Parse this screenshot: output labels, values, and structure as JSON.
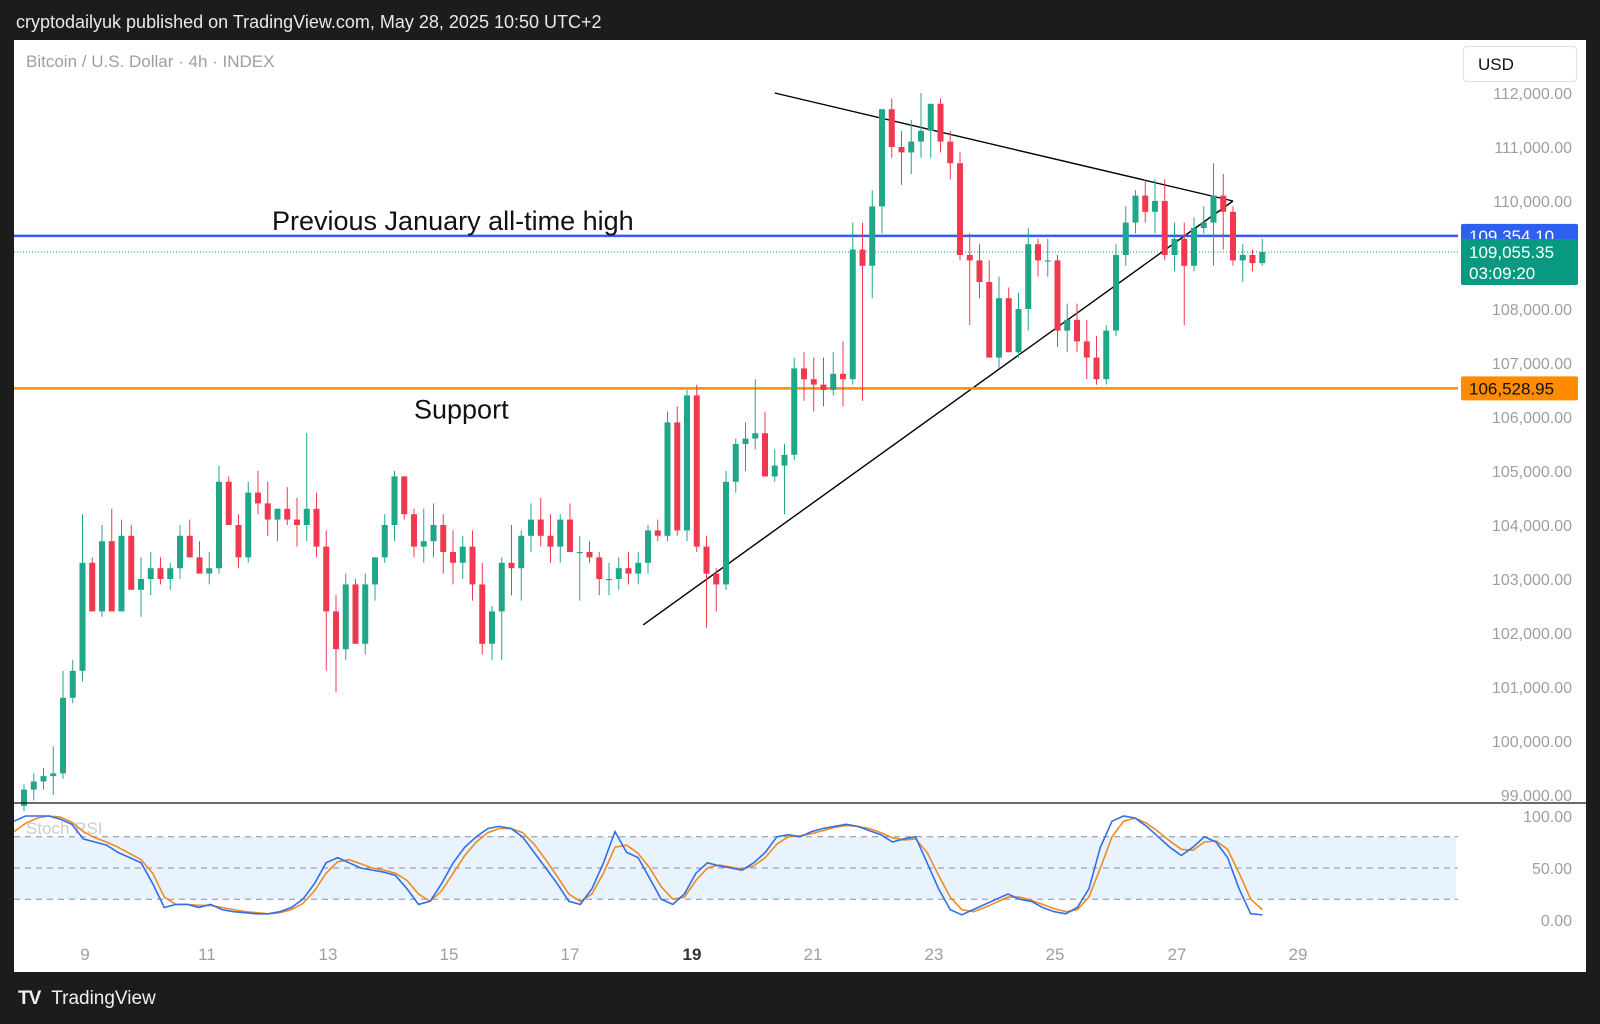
{
  "header": {
    "text": "cryptodailyuk published on TradingView.com, May 28, 2025 10:50 UTC+2"
  },
  "symbol": {
    "label": "Bitcoin / U.S. Dollar · 4h · INDEX"
  },
  "currency": {
    "label": "USD"
  },
  "footer": {
    "logo_icon": "tradingview-logo-icon",
    "brand": "TradingView"
  },
  "colors": {
    "up": "#22a68a",
    "down": "#f0394f",
    "resistance": "#2f5ff0",
    "support": "#ff8c00",
    "stoch_k": "#2f6fe8",
    "stoch_d": "#f08a24"
  },
  "chart_data": {
    "type": "candlestick",
    "interval": "4h",
    "price_scale": {
      "ticks": [
        "112,000.00",
        "111,000.00",
        "110,000.00",
        "108,000.00",
        "107,000.00",
        "106,000.00",
        "105,000.00",
        "104,000.00",
        "103,000.00",
        "102,000.00",
        "101,000.00",
        "100,000.00",
        "99,000.00"
      ],
      "range": [
        98750,
        112700
      ]
    },
    "x_axis": {
      "labels": [
        "9",
        "11",
        "13",
        "15",
        "17",
        "19",
        "21",
        "23",
        "25",
        "27",
        "29"
      ],
      "bold_label": "19"
    },
    "price_labels": [
      {
        "text": "109,354.10",
        "price": 109354.1,
        "color": "#2f5ff0"
      },
      {
        "text": "109,055.35",
        "price": 109055.35,
        "color": "#089981",
        "sub": "03:09:20"
      },
      {
        "text": "106,528.95",
        "price": 106528.95,
        "color": "#ff8c00"
      }
    ],
    "horizontal_lines": [
      {
        "name": "resistance",
        "price": 109354.1,
        "label": "Previous January all-time high"
      },
      {
        "name": "support",
        "price": 106528.95,
        "label": "Support"
      }
    ],
    "current_price": 109055.35,
    "triangle": {
      "apex_price": 110000,
      "apex_index": 124,
      "upper_start": [
        77,
        112000
      ],
      "lower_start": [
        63.5,
        102150
      ]
    },
    "candles": [
      {
        "i": 0,
        "o": 98800,
        "h": 99200,
        "l": 98700,
        "c": 99100
      },
      {
        "i": 1,
        "o": 99100,
        "h": 99400,
        "l": 98900,
        "c": 99250
      },
      {
        "i": 2,
        "o": 99250,
        "h": 99500,
        "l": 99100,
        "c": 99350
      },
      {
        "i": 3,
        "o": 99350,
        "h": 99900,
        "l": 99000,
        "c": 99400
      },
      {
        "i": 4,
        "o": 99400,
        "h": 101300,
        "l": 99300,
        "c": 100800
      },
      {
        "i": 5,
        "o": 100800,
        "h": 101500,
        "l": 100700,
        "c": 101300
      },
      {
        "i": 6,
        "o": 101300,
        "h": 104200,
        "l": 101100,
        "c": 103300
      },
      {
        "i": 7,
        "o": 103300,
        "h": 103400,
        "l": 102400,
        "c": 102400
      },
      {
        "i": 8,
        "o": 102400,
        "h": 104000,
        "l": 102300,
        "c": 103700
      },
      {
        "i": 9,
        "o": 103700,
        "h": 104300,
        "l": 102400,
        "c": 102400
      },
      {
        "i": 10,
        "o": 102400,
        "h": 104100,
        "l": 102400,
        "c": 103800
      },
      {
        "i": 11,
        "o": 103800,
        "h": 104000,
        "l": 102800,
        "c": 102800
      },
      {
        "i": 12,
        "o": 102800,
        "h": 103400,
        "l": 102300,
        "c": 103000
      },
      {
        "i": 13,
        "o": 103000,
        "h": 103500,
        "l": 102700,
        "c": 103200
      },
      {
        "i": 14,
        "o": 103200,
        "h": 103400,
        "l": 102900,
        "c": 103000
      },
      {
        "i": 15,
        "o": 103000,
        "h": 103300,
        "l": 102800,
        "c": 103200
      },
      {
        "i": 16,
        "o": 103200,
        "h": 104000,
        "l": 103000,
        "c": 103800
      },
      {
        "i": 17,
        "o": 103800,
        "h": 104100,
        "l": 103500,
        "c": 103400
      },
      {
        "i": 18,
        "o": 103400,
        "h": 103700,
        "l": 103100,
        "c": 103100
      },
      {
        "i": 19,
        "o": 103100,
        "h": 103500,
        "l": 102900,
        "c": 103200
      },
      {
        "i": 20,
        "o": 103200,
        "h": 105100,
        "l": 103100,
        "c": 104800
      },
      {
        "i": 21,
        "o": 104800,
        "h": 104900,
        "l": 104000,
        "c": 104000
      },
      {
        "i": 22,
        "o": 104000,
        "h": 104200,
        "l": 103200,
        "c": 103400
      },
      {
        "i": 23,
        "o": 103400,
        "h": 104800,
        "l": 103300,
        "c": 104600
      },
      {
        "i": 24,
        "o": 104600,
        "h": 105000,
        "l": 104200,
        "c": 104400
      },
      {
        "i": 25,
        "o": 104400,
        "h": 104800,
        "l": 103800,
        "c": 104100
      },
      {
        "i": 26,
        "o": 104100,
        "h": 104300,
        "l": 103700,
        "c": 104300
      },
      {
        "i": 27,
        "o": 104300,
        "h": 104700,
        "l": 104000,
        "c": 104100
      },
      {
        "i": 28,
        "o": 104100,
        "h": 104500,
        "l": 103600,
        "c": 104000
      },
      {
        "i": 29,
        "o": 104000,
        "h": 105700,
        "l": 103700,
        "c": 104300
      },
      {
        "i": 30,
        "o": 104300,
        "h": 104600,
        "l": 103400,
        "c": 103600
      },
      {
        "i": 31,
        "o": 103600,
        "h": 103900,
        "l": 101300,
        "c": 102400
      },
      {
        "i": 32,
        "o": 102400,
        "h": 102700,
        "l": 100900,
        "c": 101700
      },
      {
        "i": 33,
        "o": 101700,
        "h": 103100,
        "l": 101500,
        "c": 102900
      },
      {
        "i": 34,
        "o": 102900,
        "h": 103000,
        "l": 101800,
        "c": 101800
      },
      {
        "i": 35,
        "o": 101800,
        "h": 103100,
        "l": 101600,
        "c": 102900
      },
      {
        "i": 36,
        "o": 102900,
        "h": 103400,
        "l": 102600,
        "c": 103400
      },
      {
        "i": 37,
        "o": 103400,
        "h": 104200,
        "l": 103300,
        "c": 104000
      },
      {
        "i": 38,
        "o": 104000,
        "h": 105000,
        "l": 103700,
        "c": 104900
      },
      {
        "i": 39,
        "o": 104900,
        "h": 104900,
        "l": 104100,
        "c": 104200
      },
      {
        "i": 40,
        "o": 104200,
        "h": 104300,
        "l": 103400,
        "c": 103600
      },
      {
        "i": 41,
        "o": 103600,
        "h": 104300,
        "l": 103300,
        "c": 103700
      },
      {
        "i": 42,
        "o": 103700,
        "h": 104400,
        "l": 103400,
        "c": 104000
      },
      {
        "i": 43,
        "o": 104000,
        "h": 104200,
        "l": 103100,
        "c": 103500
      },
      {
        "i": 44,
        "o": 103500,
        "h": 103900,
        "l": 102900,
        "c": 103300
      },
      {
        "i": 45,
        "o": 103300,
        "h": 103800,
        "l": 103000,
        "c": 103600
      },
      {
        "i": 46,
        "o": 103600,
        "h": 103900,
        "l": 102600,
        "c": 102900
      },
      {
        "i": 47,
        "o": 102900,
        "h": 103300,
        "l": 101600,
        "c": 101800
      },
      {
        "i": 48,
        "o": 101800,
        "h": 102500,
        "l": 101500,
        "c": 102400
      },
      {
        "i": 49,
        "o": 102400,
        "h": 103400,
        "l": 101500,
        "c": 103300
      },
      {
        "i": 50,
        "o": 103300,
        "h": 104000,
        "l": 102700,
        "c": 103200
      },
      {
        "i": 51,
        "o": 103200,
        "h": 103900,
        "l": 102600,
        "c": 103800
      },
      {
        "i": 52,
        "o": 103800,
        "h": 104400,
        "l": 103500,
        "c": 104100
      },
      {
        "i": 53,
        "o": 104100,
        "h": 104500,
        "l": 103600,
        "c": 103800
      },
      {
        "i": 54,
        "o": 103800,
        "h": 104200,
        "l": 103300,
        "c": 103600
      },
      {
        "i": 55,
        "o": 103600,
        "h": 104200,
        "l": 103300,
        "c": 104100
      },
      {
        "i": 56,
        "o": 104100,
        "h": 104400,
        "l": 103500,
        "c": 103500
      },
      {
        "i": 57,
        "o": 103500,
        "h": 103800,
        "l": 102600,
        "c": 103500
      },
      {
        "i": 58,
        "o": 103500,
        "h": 103700,
        "l": 103300,
        "c": 103400
      },
      {
        "i": 59,
        "o": 103400,
        "h": 103500,
        "l": 102700,
        "c": 103000
      },
      {
        "i": 60,
        "o": 103000,
        "h": 103300,
        "l": 102700,
        "c": 103000
      },
      {
        "i": 61,
        "o": 103000,
        "h": 103400,
        "l": 102800,
        "c": 103200
      },
      {
        "i": 62,
        "o": 103200,
        "h": 103500,
        "l": 102900,
        "c": 103100
      },
      {
        "i": 63,
        "o": 103100,
        "h": 103500,
        "l": 102900,
        "c": 103300
      },
      {
        "i": 64,
        "o": 103300,
        "h": 104000,
        "l": 103100,
        "c": 103900
      },
      {
        "i": 65,
        "o": 103900,
        "h": 104100,
        "l": 103700,
        "c": 103800
      },
      {
        "i": 66,
        "o": 103800,
        "h": 106100,
        "l": 103700,
        "c": 105900
      },
      {
        "i": 67,
        "o": 105900,
        "h": 106200,
        "l": 103800,
        "c": 103900
      },
      {
        "i": 68,
        "o": 103900,
        "h": 106500,
        "l": 103700,
        "c": 106400
      },
      {
        "i": 69,
        "o": 106400,
        "h": 106600,
        "l": 103500,
        "c": 103600
      },
      {
        "i": 70,
        "o": 103600,
        "h": 103800,
        "l": 102100,
        "c": 103100
      },
      {
        "i": 71,
        "o": 103100,
        "h": 103200,
        "l": 102400,
        "c": 102900
      },
      {
        "i": 72,
        "o": 102900,
        "h": 105000,
        "l": 102800,
        "c": 104800
      },
      {
        "i": 73,
        "o": 104800,
        "h": 105600,
        "l": 104600,
        "c": 105500
      },
      {
        "i": 74,
        "o": 105500,
        "h": 105900,
        "l": 105000,
        "c": 105600
      },
      {
        "i": 75,
        "o": 105600,
        "h": 106700,
        "l": 105400,
        "c": 105700
      },
      {
        "i": 76,
        "o": 105700,
        "h": 106100,
        "l": 104900,
        "c": 104900
      },
      {
        "i": 77,
        "o": 104900,
        "h": 105400,
        "l": 104800,
        "c": 105100
      },
      {
        "i": 78,
        "o": 105100,
        "h": 105500,
        "l": 104200,
        "c": 105300
      },
      {
        "i": 79,
        "o": 105300,
        "h": 107100,
        "l": 105200,
        "c": 106900
      },
      {
        "i": 80,
        "o": 106900,
        "h": 107200,
        "l": 106300,
        "c": 106700
      },
      {
        "i": 81,
        "o": 106700,
        "h": 107100,
        "l": 106100,
        "c": 106600
      },
      {
        "i": 82,
        "o": 106600,
        "h": 107100,
        "l": 106200,
        "c": 106500
      },
      {
        "i": 83,
        "o": 106500,
        "h": 107200,
        "l": 106400,
        "c": 106800
      },
      {
        "i": 84,
        "o": 106800,
        "h": 107400,
        "l": 106200,
        "c": 106700
      },
      {
        "i": 85,
        "o": 106700,
        "h": 109600,
        "l": 106600,
        "c": 109100
      },
      {
        "i": 86,
        "o": 109100,
        "h": 109600,
        "l": 106300,
        "c": 108800
      },
      {
        "i": 87,
        "o": 108800,
        "h": 110200,
        "l": 108200,
        "c": 109900
      },
      {
        "i": 88,
        "o": 109900,
        "h": 111700,
        "l": 109400,
        "c": 111700
      },
      {
        "i": 89,
        "o": 111700,
        "h": 111900,
        "l": 110800,
        "c": 111000
      },
      {
        "i": 90,
        "o": 111000,
        "h": 111300,
        "l": 110300,
        "c": 110900
      },
      {
        "i": 91,
        "o": 110900,
        "h": 111500,
        "l": 110500,
        "c": 111100
      },
      {
        "i": 92,
        "o": 111100,
        "h": 112000,
        "l": 110800,
        "c": 111300
      },
      {
        "i": 93,
        "o": 111300,
        "h": 111800,
        "l": 110800,
        "c": 111800
      },
      {
        "i": 94,
        "o": 111800,
        "h": 111900,
        "l": 110900,
        "c": 111100
      },
      {
        "i": 95,
        "o": 111100,
        "h": 111300,
        "l": 110400,
        "c": 110700
      },
      {
        "i": 96,
        "o": 110700,
        "h": 110900,
        "l": 108900,
        "c": 109000
      },
      {
        "i": 97,
        "o": 109000,
        "h": 109400,
        "l": 107700,
        "c": 108900
      },
      {
        "i": 98,
        "o": 108900,
        "h": 109200,
        "l": 108200,
        "c": 108500
      },
      {
        "i": 99,
        "o": 108500,
        "h": 108900,
        "l": 107100,
        "c": 107100
      },
      {
        "i": 100,
        "o": 107100,
        "h": 108600,
        "l": 106900,
        "c": 108200
      },
      {
        "i": 101,
        "o": 108200,
        "h": 108400,
        "l": 107200,
        "c": 107200
      },
      {
        "i": 102,
        "o": 107200,
        "h": 108300,
        "l": 107100,
        "c": 108000
      },
      {
        "i": 103,
        "o": 108000,
        "h": 109500,
        "l": 107600,
        "c": 109200
      },
      {
        "i": 104,
        "o": 109200,
        "h": 109300,
        "l": 108600,
        "c": 108900
      },
      {
        "i": 105,
        "o": 108900,
        "h": 109300,
        "l": 108600,
        "c": 108900
      },
      {
        "i": 106,
        "o": 108900,
        "h": 109000,
        "l": 107300,
        "c": 107600
      },
      {
        "i": 107,
        "o": 107600,
        "h": 108100,
        "l": 107200,
        "c": 107800
      },
      {
        "i": 108,
        "o": 107800,
        "h": 108100,
        "l": 107200,
        "c": 107400
      },
      {
        "i": 109,
        "o": 107400,
        "h": 107800,
        "l": 106700,
        "c": 107100
      },
      {
        "i": 110,
        "o": 107100,
        "h": 107500,
        "l": 106600,
        "c": 106700
      },
      {
        "i": 111,
        "o": 106700,
        "h": 107700,
        "l": 106600,
        "c": 107600
      },
      {
        "i": 112,
        "o": 107600,
        "h": 109200,
        "l": 107500,
        "c": 109000
      },
      {
        "i": 113,
        "o": 109000,
        "h": 109900,
        "l": 108800,
        "c": 109600
      },
      {
        "i": 114,
        "o": 109600,
        "h": 110200,
        "l": 109400,
        "c": 110100
      },
      {
        "i": 115,
        "o": 110100,
        "h": 110400,
        "l": 109600,
        "c": 109800
      },
      {
        "i": 116,
        "o": 109800,
        "h": 110400,
        "l": 109400,
        "c": 110000
      },
      {
        "i": 117,
        "o": 110000,
        "h": 110400,
        "l": 108900,
        "c": 109000
      },
      {
        "i": 118,
        "o": 109000,
        "h": 109600,
        "l": 108700,
        "c": 109300
      },
      {
        "i": 119,
        "o": 109300,
        "h": 109600,
        "l": 107700,
        "c": 108800
      },
      {
        "i": 120,
        "o": 108800,
        "h": 109700,
        "l": 108700,
        "c": 109500
      },
      {
        "i": 121,
        "o": 109500,
        "h": 109900,
        "l": 109400,
        "c": 109600
      },
      {
        "i": 122,
        "o": 109600,
        "h": 110700,
        "l": 108800,
        "c": 110100
      },
      {
        "i": 123,
        "o": 110100,
        "h": 110500,
        "l": 109100,
        "c": 109800
      },
      {
        "i": 124,
        "o": 109800,
        "h": 109900,
        "l": 108800,
        "c": 108900
      },
      {
        "i": 125,
        "o": 108900,
        "h": 109200,
        "l": 108500,
        "c": 109000
      },
      {
        "i": 126,
        "o": 109000,
        "h": 109100,
        "l": 108700,
        "c": 108850
      },
      {
        "i": 127,
        "o": 108850,
        "h": 109300,
        "l": 108800,
        "c": 109055
      }
    ],
    "stoch_rsi": {
      "label": "Stoch RSI",
      "ticks": [
        "100.00",
        "50.00",
        "0.00"
      ],
      "bands": [
        80,
        50,
        20
      ],
      "k": [
        95,
        100,
        100,
        100,
        97,
        92,
        78,
        75,
        72,
        65,
        60,
        55,
        35,
        12,
        15,
        15,
        12,
        15,
        10,
        8,
        7,
        6,
        6,
        8,
        12,
        20,
        35,
        55,
        60,
        55,
        50,
        48,
        46,
        43,
        30,
        15,
        18,
        35,
        55,
        70,
        80,
        88,
        90,
        88,
        80,
        65,
        50,
        35,
        18,
        15,
        30,
        55,
        85,
        65,
        60,
        40,
        20,
        15,
        25,
        45,
        55,
        52,
        50,
        48,
        55,
        65,
        80,
        82,
        80,
        85,
        88,
        90,
        92,
        90,
        86,
        82,
        75,
        78,
        80,
        55,
        30,
        10,
        5,
        10,
        15,
        20,
        25,
        20,
        18,
        12,
        8,
        6,
        12,
        30,
        70,
        95,
        100,
        98,
        90,
        80,
        70,
        62,
        70,
        80,
        75,
        60,
        30,
        6,
        5
      ],
      "d": [
        85,
        93,
        98,
        100,
        99,
        94,
        85,
        79,
        75,
        70,
        64,
        58,
        45,
        22,
        15,
        15,
        14,
        14,
        12,
        10,
        8,
        7,
        6,
        7,
        10,
        16,
        28,
        45,
        56,
        58,
        54,
        50,
        48,
        45,
        38,
        25,
        18,
        28,
        45,
        62,
        75,
        84,
        88,
        88,
        84,
        73,
        58,
        42,
        25,
        18,
        25,
        45,
        70,
        72,
        64,
        50,
        32,
        20,
        22,
        38,
        50,
        53,
        51,
        49,
        52,
        60,
        73,
        80,
        81,
        83,
        86,
        89,
        91,
        90,
        88,
        84,
        79,
        77,
        78,
        65,
        43,
        22,
        10,
        8,
        12,
        17,
        22,
        22,
        19,
        15,
        11,
        8,
        10,
        22,
        50,
        80,
        95,
        98,
        93,
        85,
        76,
        68,
        67,
        75,
        76,
        68,
        45,
        20,
        10
      ]
    }
  }
}
